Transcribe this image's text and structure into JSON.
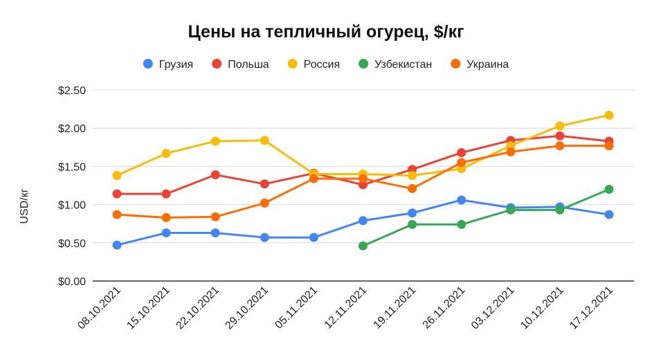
{
  "chart_data": {
    "type": "line",
    "title": "Цены на тепличный огурец, $/кг",
    "ylabel": "USD/кг",
    "xlabel": "",
    "categories": [
      "08.10.2021",
      "15.10.2021",
      "22.10.2021",
      "29.10.2021",
      "05.11.2021",
      "12.11.2021",
      "19.11.2021",
      "26.11.2021",
      "03.12.2021",
      "10.12.2021",
      "17.12.2021"
    ],
    "ylim": [
      0,
      2.5
    ],
    "yticks": [
      0,
      0.5,
      1.0,
      1.5,
      2.0,
      2.5
    ],
    "ytick_labels": [
      "$0.00",
      "$0.50",
      "$1.00",
      "$1.50",
      "$2.00",
      "$2.50"
    ],
    "grid": true,
    "legend_position": "top",
    "series": [
      {
        "name": "Грузия",
        "color": "#4285f4",
        "values": [
          0.47,
          0.63,
          0.63,
          0.57,
          0.57,
          0.79,
          0.89,
          1.06,
          0.96,
          0.97,
          0.87
        ]
      },
      {
        "name": "Польша",
        "color": "#ea4335",
        "values": [
          1.14,
          1.14,
          1.39,
          1.27,
          1.41,
          1.26,
          1.46,
          1.68,
          1.84,
          1.9,
          1.83
        ]
      },
      {
        "name": "Россия",
        "color": "#fbbc04",
        "values": [
          1.38,
          1.67,
          1.83,
          1.84,
          1.4,
          1.4,
          1.38,
          1.47,
          1.77,
          2.03,
          2.17
        ]
      },
      {
        "name": "Узбекистан",
        "color": "#34a853",
        "values": [
          null,
          null,
          null,
          null,
          null,
          0.46,
          0.74,
          0.74,
          0.93,
          0.93,
          1.2
        ]
      },
      {
        "name": "Украина",
        "color": "#ff6d01",
        "values": [
          0.87,
          0.83,
          0.84,
          1.02,
          1.34,
          1.34,
          1.21,
          1.55,
          1.69,
          1.77,
          1.77
        ]
      }
    ]
  }
}
